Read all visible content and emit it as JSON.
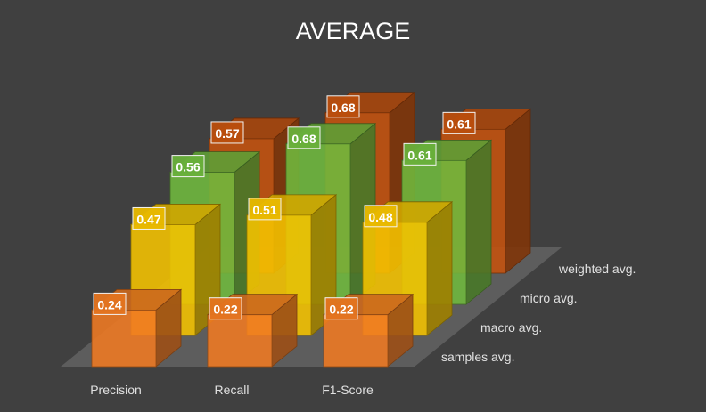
{
  "chart_data": {
    "type": "bar",
    "title": "AVERAGE",
    "categories": [
      "Precision",
      "Recall",
      "F1-Score"
    ],
    "series": [
      {
        "name": "samples avg.",
        "values": [
          0.24,
          0.22,
          0.22
        ],
        "color": "#F07A22"
      },
      {
        "name": "macro avg.",
        "values": [
          0.47,
          0.51,
          0.48
        ],
        "color": "#F5C300"
      },
      {
        "name": "micro avg.",
        "values": [
          0.56,
          0.68,
          0.61
        ],
        "color": "#6FB93E"
      },
      {
        "name": "weighted avg.",
        "values": [
          0.57,
          0.68,
          0.61
        ],
        "color": "#C5520E"
      }
    ],
    "data_labels": true,
    "legend": "none",
    "grid": false
  }
}
